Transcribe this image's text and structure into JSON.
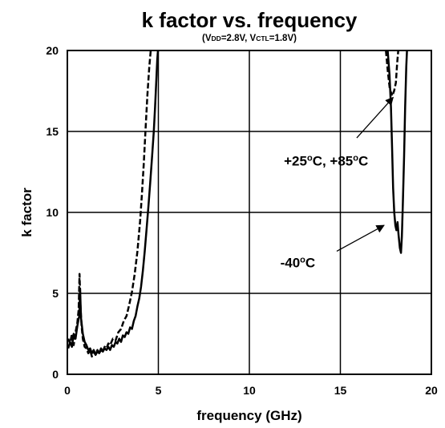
{
  "chart_data": {
    "type": "line",
    "title": "k factor vs. frequency",
    "subtitle": {
      "open": "(V",
      "vdd_sub": "DD",
      "vdd_value": "=2.8V, V",
      "vctl_sub": "CTL",
      "vctl_value": "=1.8V)"
    },
    "xlabel": "frequency (GHz)",
    "ylabel": "k factor",
    "xlim": [
      0,
      20
    ],
    "ylim": [
      0,
      20
    ],
    "grid": true,
    "x_ticks": [
      "0",
      "5",
      "10",
      "15",
      "20"
    ],
    "y_ticks": [
      "0",
      "5",
      "10",
      "15",
      "20"
    ],
    "annotations": [
      {
        "id": "warm",
        "parts": [
          "+25",
          "o",
          "C, +85",
          "o",
          "C"
        ],
        "text_at": [
          11.9,
          12.9
        ],
        "arrow_from": [
          15.9,
          14.6
        ],
        "arrow_to": [
          17.9,
          17.1
        ]
      },
      {
        "id": "cold",
        "parts": [
          "-40",
          "o",
          "C"
        ],
        "text_at": [
          11.7,
          6.6
        ],
        "arrow_from": [
          14.8,
          7.6
        ],
        "arrow_to": [
          17.4,
          9.2
        ]
      }
    ],
    "series": [
      {
        "style": "dashed",
        "color": "#000000",
        "segments": [
          [
            [
              0.05,
              2.2
            ],
            [
              0.15,
              1.9
            ],
            [
              0.25,
              2.5
            ],
            [
              0.35,
              1.8
            ],
            [
              0.45,
              2.6
            ],
            [
              0.55,
              3.2
            ],
            [
              0.62,
              4.0
            ],
            [
              0.67,
              6.2
            ],
            [
              0.72,
              4.3
            ],
            [
              0.78,
              3.0
            ],
            [
              0.85,
              2.2
            ],
            [
              0.95,
              1.7
            ],
            [
              1.05,
              1.6
            ],
            [
              1.15,
              1.3
            ],
            [
              1.25,
              1.5
            ],
            [
              1.35,
              1.1
            ],
            [
              1.45,
              1.4
            ],
            [
              1.55,
              1.2
            ],
            [
              1.65,
              1.5
            ],
            [
              1.75,
              1.3
            ],
            [
              1.85,
              1.6
            ],
            [
              1.95,
              1.4
            ],
            [
              2.05,
              1.7
            ],
            [
              2.15,
              1.6
            ],
            [
              2.25,
              1.9
            ],
            [
              2.35,
              1.8
            ],
            [
              2.5,
              2.2
            ],
            [
              2.65,
              2.1
            ],
            [
              2.8,
              2.6
            ],
            [
              2.95,
              2.8
            ],
            [
              3.1,
              3.3
            ],
            [
              3.25,
              3.6
            ],
            [
              3.4,
              4.3
            ],
            [
              3.55,
              5.1
            ],
            [
              3.7,
              6.2
            ],
            [
              3.85,
              7.6
            ],
            [
              4.0,
              9.5
            ],
            [
              4.1,
              11.2
            ],
            [
              4.2,
              13.0
            ],
            [
              4.3,
              15.2
            ],
            [
              4.4,
              17.3
            ],
            [
              4.5,
              19.0
            ],
            [
              4.58,
              20.0
            ]
          ],
          [
            [
              17.5,
              20.0
            ],
            [
              17.6,
              18.8
            ],
            [
              17.72,
              17.6
            ],
            [
              17.85,
              17.2
            ],
            [
              17.95,
              17.5
            ],
            [
              18.05,
              18.0
            ],
            [
              18.12,
              19.2
            ],
            [
              18.18,
              20.0
            ]
          ]
        ]
      },
      {
        "style": "solid",
        "color": "#000000",
        "segments": [
          [
            [
              0.05,
              1.6
            ],
            [
              0.15,
              2.0
            ],
            [
              0.25,
              1.7
            ],
            [
              0.35,
              2.5
            ],
            [
              0.45,
              2.2
            ],
            [
              0.55,
              3.0
            ],
            [
              0.65,
              3.6
            ],
            [
              0.7,
              5.3
            ],
            [
              0.75,
              3.5
            ],
            [
              0.85,
              2.5
            ],
            [
              0.95,
              2.0
            ],
            [
              1.05,
              1.8
            ],
            [
              1.15,
              1.5
            ],
            [
              1.25,
              1.6
            ],
            [
              1.35,
              1.3
            ],
            [
              1.45,
              1.5
            ],
            [
              1.55,
              1.2
            ],
            [
              1.65,
              1.4
            ],
            [
              1.75,
              1.3
            ],
            [
              1.85,
              1.5
            ],
            [
              1.95,
              1.4
            ],
            [
              2.05,
              1.6
            ],
            [
              2.15,
              1.5
            ],
            [
              2.25,
              1.7
            ],
            [
              2.35,
              1.5
            ],
            [
              2.45,
              1.8
            ],
            [
              2.55,
              1.7
            ],
            [
              2.65,
              2.0
            ],
            [
              2.75,
              1.9
            ],
            [
              2.85,
              2.2
            ],
            [
              2.95,
              2.0
            ],
            [
              3.05,
              2.4
            ],
            [
              3.15,
              2.3
            ],
            [
              3.25,
              2.6
            ],
            [
              3.35,
              2.5
            ],
            [
              3.45,
              2.9
            ],
            [
              3.55,
              2.8
            ],
            [
              3.65,
              3.3
            ],
            [
              3.75,
              3.6
            ],
            [
              3.85,
              4.2
            ],
            [
              3.95,
              4.7
            ],
            [
              4.05,
              5.4
            ],
            [
              4.15,
              6.4
            ],
            [
              4.25,
              7.6
            ],
            [
              4.35,
              8.9
            ],
            [
              4.45,
              10.3
            ],
            [
              4.55,
              11.8
            ],
            [
              4.65,
              13.4
            ],
            [
              4.75,
              15.0
            ],
            [
              4.82,
              16.5
            ],
            [
              4.88,
              18.0
            ],
            [
              4.94,
              19.4
            ],
            [
              4.98,
              20.0
            ]
          ],
          [
            [
              17.6,
              20.0
            ],
            [
              17.7,
              18.5
            ],
            [
              17.78,
              16.5
            ],
            [
              17.84,
              14.0
            ],
            [
              17.9,
              11.5
            ],
            [
              17.96,
              10.0
            ],
            [
              18.02,
              9.2
            ],
            [
              18.08,
              8.9
            ],
            [
              18.14,
              9.4
            ],
            [
              18.2,
              8.6
            ],
            [
              18.27,
              7.8
            ],
            [
              18.33,
              7.5
            ],
            [
              18.38,
              8.5
            ],
            [
              18.43,
              10.5
            ],
            [
              18.5,
              13.5
            ],
            [
              18.56,
              16.5
            ],
            [
              18.62,
              19.0
            ],
            [
              18.66,
              20.0
            ]
          ]
        ]
      }
    ]
  }
}
